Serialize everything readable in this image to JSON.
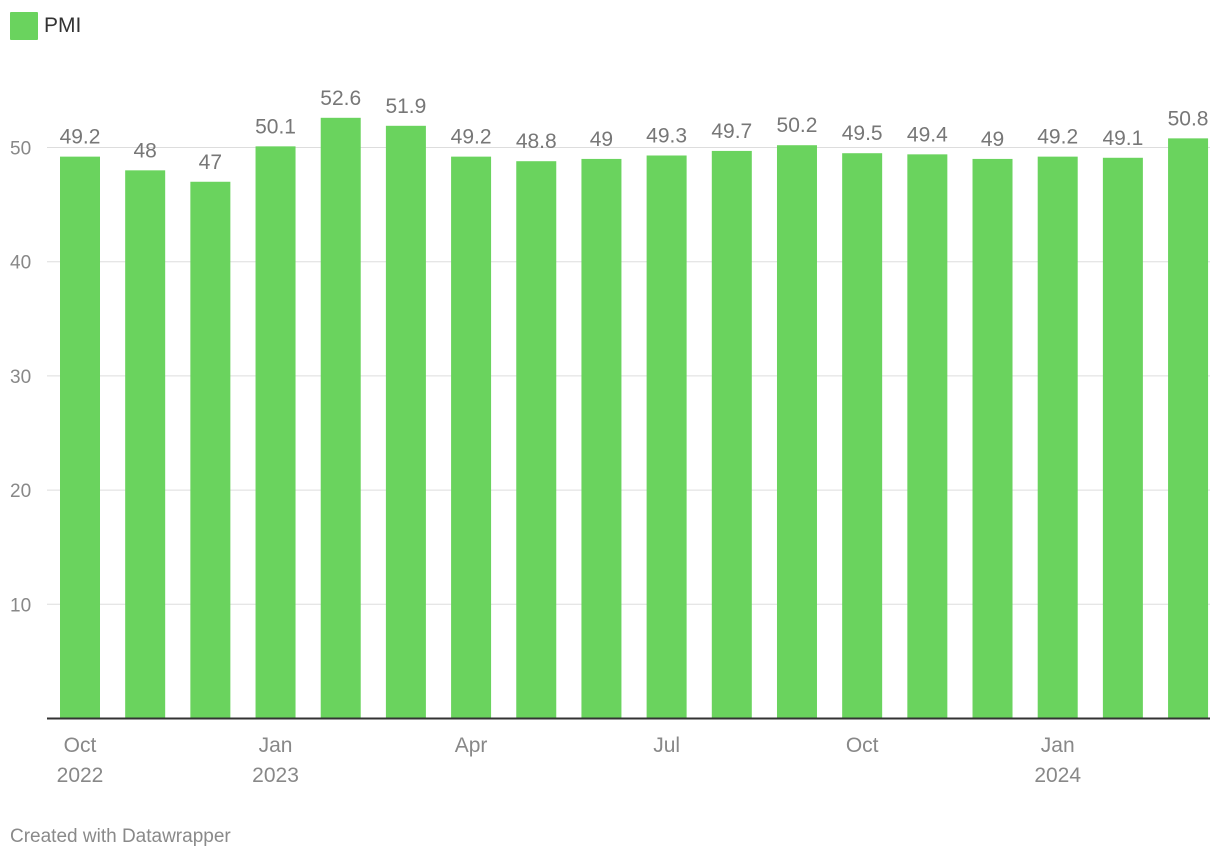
{
  "legend": {
    "label": "PMI",
    "color": "#6ad35e"
  },
  "footer": {
    "text": "Created with Datawrapper"
  },
  "colors": {
    "bar": "#6ad35e",
    "grid": "#dddddd",
    "axis_text": "#888888",
    "value_label": "#777777",
    "baseline": "#333333"
  },
  "chart_data": {
    "type": "bar",
    "categories": [
      "2022-10",
      "2022-11",
      "2022-12",
      "2023-01",
      "2023-02",
      "2023-03",
      "2023-04",
      "2023-05",
      "2023-06",
      "2023-07",
      "2023-08",
      "2023-09",
      "2023-10",
      "2023-11",
      "2023-12",
      "2024-01",
      "2024-02",
      "2024-03"
    ],
    "series": [
      {
        "name": "PMI",
        "values": [
          49.2,
          48,
          47,
          50.1,
          52.6,
          51.9,
          49.2,
          48.8,
          49,
          49.3,
          49.7,
          50.2,
          49.5,
          49.4,
          49,
          49.2,
          49.1,
          50.8
        ],
        "value_labels": [
          "49.2",
          "48",
          "47",
          "50.1",
          "52.6",
          "51.9",
          "49.2",
          "48.8",
          "49",
          "49.3",
          "49.7",
          "50.2",
          "49.5",
          "49.4",
          "49",
          "49.2",
          "49.1",
          "50.8"
        ]
      }
    ],
    "x_tick_labels": [
      {
        "index": 0,
        "lines": [
          "Oct",
          "2022"
        ]
      },
      {
        "index": 3,
        "lines": [
          "Jan",
          "2023"
        ]
      },
      {
        "index": 6,
        "lines": [
          "Apr"
        ]
      },
      {
        "index": 9,
        "lines": [
          "Jul"
        ]
      },
      {
        "index": 12,
        "lines": [
          "Oct"
        ]
      },
      {
        "index": 15,
        "lines": [
          "Jan",
          "2024"
        ]
      }
    ],
    "y_ticks": [
      10,
      20,
      30,
      40,
      50
    ],
    "ylim": [
      0,
      55
    ],
    "grid": true,
    "legend_position": "top-left",
    "title": "",
    "xlabel": "",
    "ylabel": ""
  }
}
